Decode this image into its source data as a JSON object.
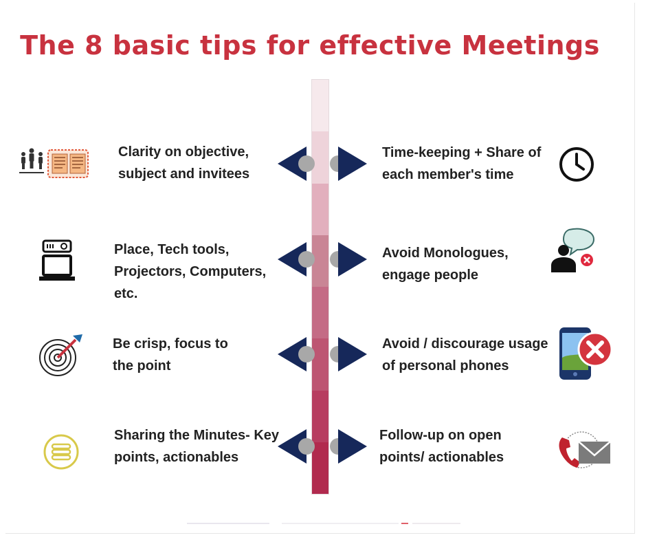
{
  "title": "The 8 basic tips for effective Meetings",
  "colors": {
    "title": "#c8323f",
    "arrow": "#16285a",
    "dot": "#a8a8a8",
    "spine": [
      "#f6e9ec",
      "#eed3da",
      "#e2afbd",
      "#c98595",
      "#c46b85",
      "#bd5572",
      "#b73d60",
      "#b12a4e"
    ]
  },
  "tips": [
    {
      "text": "Clarity on objective,\nsubject and invitees",
      "icon": "people-board-icon"
    },
    {
      "text": "Time-keeping + Share of\neach member's time",
      "icon": "clock-icon"
    },
    {
      "text": "Place, Tech tools,\nProjectors, Computers,\netc.",
      "icon": "projector-laptop-icon"
    },
    {
      "text": "Avoid Monologues,\nengage people",
      "icon": "speaker-chat-icon"
    },
    {
      "text": "Be crisp, focus to\nthe point",
      "icon": "target-dart-icon"
    },
    {
      "text": "Avoid / discourage usage\nof personal phones",
      "icon": "phone-cross-icon"
    },
    {
      "text": "Sharing the Minutes- Key\npoints, actionables",
      "icon": "minutes-list-icon"
    },
    {
      "text": "Follow-up on open\npoints/ actionables",
      "icon": "phone-mail-icon"
    }
  ]
}
